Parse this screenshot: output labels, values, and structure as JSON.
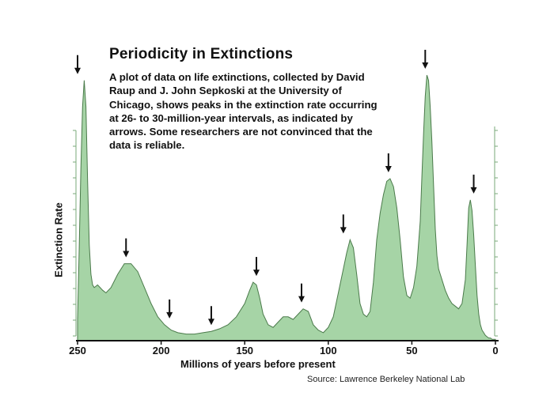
{
  "chart_data": {
    "type": "area",
    "title": "Periodicity in Extinctions",
    "subtitle": "A plot of data on life extinctions, collected by David Raup and J. John Sepkoski at the University of Chicago, shows peaks in the extinction rate occurring at 26- to 30-million-year intervals, as indicated by arrows. Some researchers are not convinced that the data is reliable.",
    "xlabel": "Millions of years before present",
    "ylabel": "Extinction Rate",
    "source": "Source: Lawrence Berkeley National Lab",
    "xlim": [
      250,
      0
    ],
    "x_reversed": true,
    "ylim": [
      0,
      100
    ],
    "x_ticks": [
      250,
      200,
      150,
      100,
      50,
      0
    ],
    "fill_color": "#a6d4a6",
    "line_color": "#4a7a4a",
    "grid": false,
    "x": [
      250,
      249,
      248,
      247,
      246,
      245,
      244,
      243,
      242,
      241,
      240,
      238,
      235,
      233,
      230,
      226,
      222,
      218,
      214,
      210,
      206,
      202,
      198,
      194,
      190,
      185,
      180,
      175,
      170,
      165,
      160,
      155,
      150,
      147,
      145,
      143,
      141,
      139,
      136,
      133,
      130,
      127,
      124,
      121,
      118,
      115,
      112,
      109,
      106,
      103,
      100,
      97,
      94,
      91,
      89,
      87,
      85,
      83,
      81,
      79,
      77,
      75,
      73,
      71,
      69,
      67,
      65,
      63,
      61,
      59,
      57,
      55,
      53,
      51,
      49,
      47,
      45,
      44,
      43,
      42,
      41,
      40,
      39,
      38,
      37,
      36,
      35,
      34,
      33,
      32,
      30,
      28,
      26,
      24,
      22,
      20,
      18,
      17,
      16,
      15,
      14,
      13,
      12,
      11,
      10,
      9,
      8,
      7,
      6,
      5,
      4,
      3,
      2,
      1,
      0
    ],
    "y": [
      8,
      35,
      65,
      88,
      98,
      88,
      60,
      36,
      25,
      21,
      20,
      21,
      19,
      18,
      20,
      25,
      29,
      29,
      26,
      20,
      14,
      9,
      6,
      4,
      3,
      2.5,
      2.5,
      3,
      3.5,
      4.5,
      6,
      9,
      14,
      19,
      22,
      21,
      16,
      10,
      6,
      5,
      7,
      9,
      9,
      8,
      10,
      12,
      11,
      6,
      4,
      3,
      5,
      9,
      18,
      27,
      33,
      38,
      35,
      25,
      14,
      10,
      9,
      11,
      22,
      38,
      48,
      55,
      60,
      61,
      58,
      50,
      38,
      24,
      17,
      16,
      20,
      28,
      45,
      62,
      78,
      92,
      100,
      98,
      88,
      75,
      58,
      42,
      32,
      27,
      25,
      23,
      19,
      16,
      14,
      13,
      12,
      14,
      23,
      36,
      50,
      53,
      49,
      40,
      28,
      17,
      10,
      6,
      4,
      3,
      2,
      1.5,
      1,
      1,
      0.5,
      0.5,
      0.5
    ],
    "arrows_at": [
      250,
      221,
      195,
      170,
      143,
      116,
      91,
      64,
      42,
      13
    ]
  }
}
